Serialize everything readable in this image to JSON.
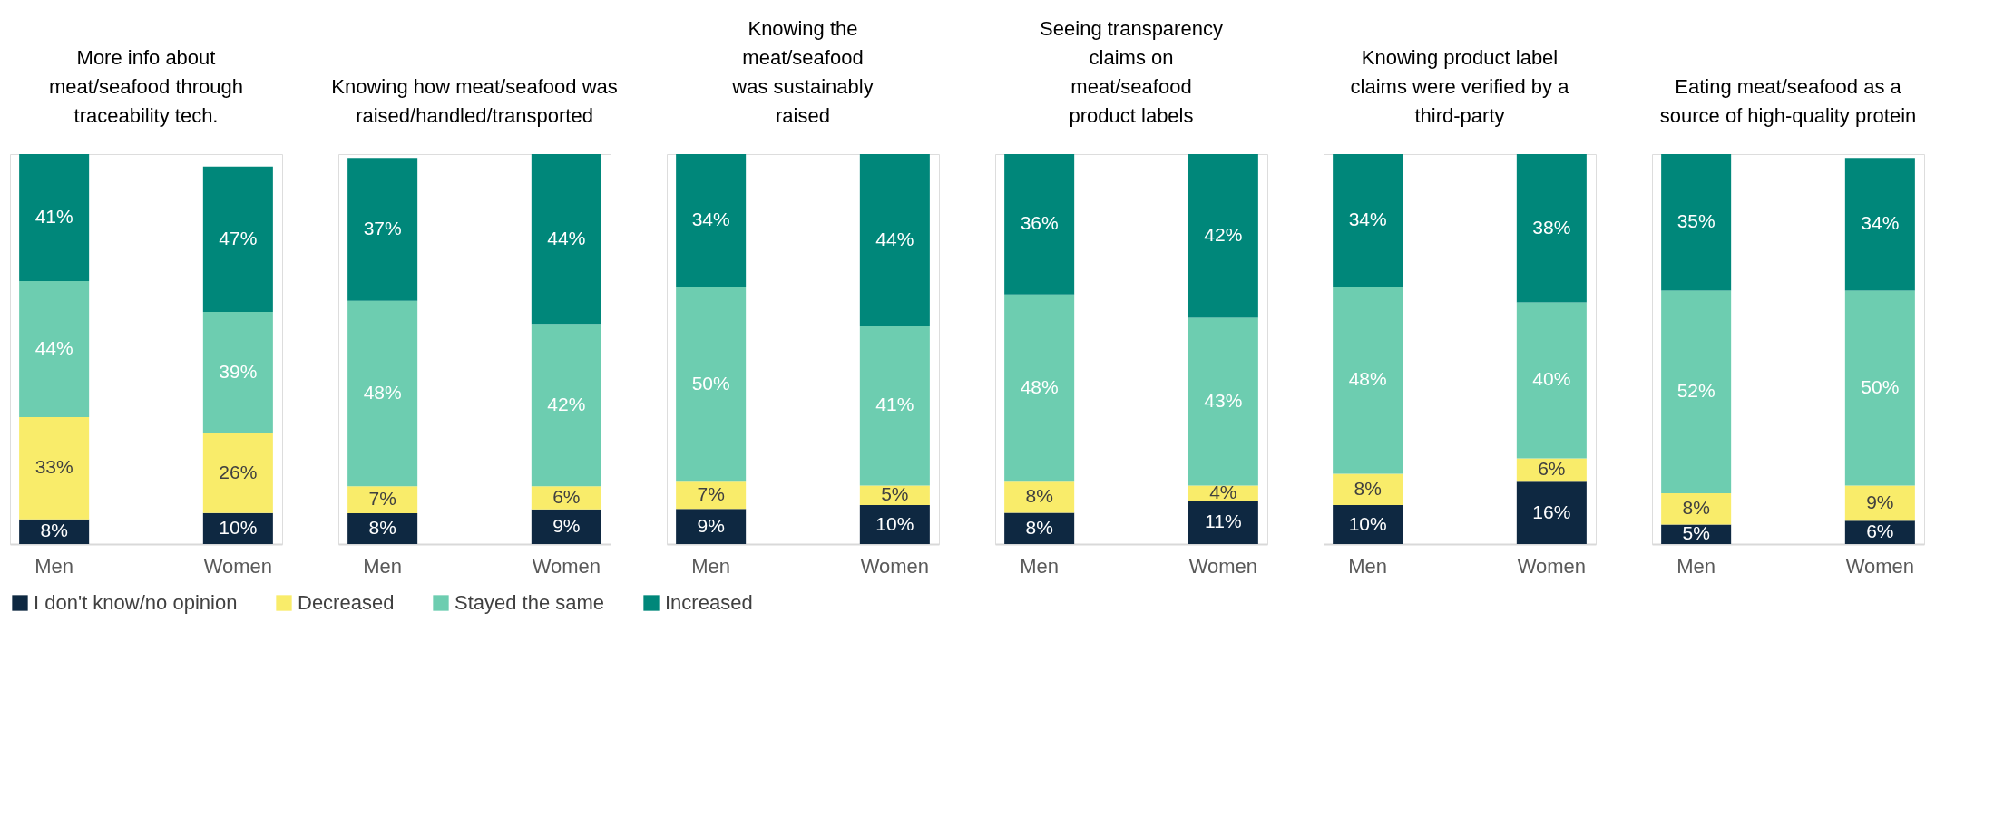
{
  "chart_data": [
    {
      "type": "bar",
      "stacked": true,
      "legend": "bottom",
      "title": "More info about\nmeat/seafood through\ntraceability tech.",
      "categories": [
        "Men",
        "Women"
      ],
      "series": [
        {
          "name": "I don't know/no opinion",
          "color": "#0e2841",
          "values": [
            8,
            10
          ],
          "value_labels": [
            "8%",
            "10%"
          ]
        },
        {
          "name": "Decreased",
          "color": "#f9ec6a",
          "values": [
            33,
            26
          ],
          "value_labels": [
            "33%",
            "26%"
          ]
        },
        {
          "name": "Stayed the same",
          "color": "#6dcdb0",
          "values": [
            44,
            39
          ],
          "value_labels": [
            "44%",
            "39%"
          ]
        },
        {
          "name": "Increased",
          "color": "#00877a",
          "values": [
            41,
            47
          ],
          "value_labels": [
            "41%",
            "47%"
          ]
        }
      ]
    },
    {
      "type": "bar",
      "stacked": true,
      "legend": "bottom",
      "title": "Knowing how meat/seafood was\nraised/handled/transported",
      "categories": [
        "Men",
        "Women"
      ],
      "series": [
        {
          "name": "I don't know/no opinion",
          "color": "#0e2841",
          "values": [
            8,
            9
          ],
          "value_labels": [
            "8%",
            "9%"
          ]
        },
        {
          "name": "Decreased",
          "color": "#f9ec6a",
          "values": [
            7,
            6
          ],
          "value_labels": [
            "7%",
            "6%"
          ]
        },
        {
          "name": "Stayed the same",
          "color": "#6dcdb0",
          "values": [
            48,
            42
          ],
          "value_labels": [
            "48%",
            "42%"
          ]
        },
        {
          "name": "Increased",
          "color": "#00877a",
          "values": [
            37,
            44
          ],
          "value_labels": [
            "37%",
            "44%"
          ]
        }
      ]
    },
    {
      "type": "bar",
      "stacked": true,
      "legend": "bottom",
      "title": "Knowing the\nmeat/seafood\nwas sustainably\nraised",
      "categories": [
        "Men",
        "Women"
      ],
      "series": [
        {
          "name": "I don't know/no opinion",
          "color": "#0e2841",
          "values": [
            9,
            10
          ],
          "value_labels": [
            "9%",
            "10%"
          ]
        },
        {
          "name": "Decreased",
          "color": "#f9ec6a",
          "values": [
            7,
            5
          ],
          "value_labels": [
            "7%",
            "5%"
          ]
        },
        {
          "name": "Stayed the same",
          "color": "#6dcdb0",
          "values": [
            50,
            41
          ],
          "value_labels": [
            "50%",
            "41%"
          ]
        },
        {
          "name": "Increased",
          "color": "#00877a",
          "values": [
            34,
            44
          ],
          "value_labels": [
            "34%",
            "44%"
          ]
        }
      ]
    },
    {
      "type": "bar",
      "stacked": true,
      "legend": "bottom",
      "title": "Seeing transparency\nclaims on\nmeat/seafood\nproduct labels",
      "categories": [
        "Men",
        "Women"
      ],
      "series": [
        {
          "name": "I don't know/no opinion",
          "color": "#0e2841",
          "values": [
            8,
            11
          ],
          "value_labels": [
            "8%",
            "11%"
          ]
        },
        {
          "name": "Decreased",
          "color": "#f9ec6a",
          "values": [
            8,
            4
          ],
          "value_labels": [
            "8%",
            "4%"
          ]
        },
        {
          "name": "Stayed the same",
          "color": "#6dcdb0",
          "values": [
            48,
            43
          ],
          "value_labels": [
            "48%",
            "43%"
          ]
        },
        {
          "name": "Increased",
          "color": "#00877a",
          "values": [
            36,
            42
          ],
          "value_labels": [
            "36%",
            "42%"
          ]
        }
      ]
    },
    {
      "type": "bar",
      "stacked": true,
      "legend": "bottom",
      "title": "Knowing product label\nclaims were verified by a\nthird-party",
      "categories": [
        "Men",
        "Women"
      ],
      "series": [
        {
          "name": "I don't know/no opinion",
          "color": "#0e2841",
          "values": [
            10,
            16
          ],
          "value_labels": [
            "10%",
            "16%"
          ]
        },
        {
          "name": "Decreased",
          "color": "#f9ec6a",
          "values": [
            8,
            6
          ],
          "value_labels": [
            "8%",
            "6%"
          ]
        },
        {
          "name": "Stayed the same",
          "color": "#6dcdb0",
          "values": [
            48,
            40
          ],
          "value_labels": [
            "48%",
            "40%"
          ]
        },
        {
          "name": "Increased",
          "color": "#00877a",
          "values": [
            34,
            38
          ],
          "value_labels": [
            "34%",
            "38%"
          ]
        }
      ]
    },
    {
      "type": "bar",
      "stacked": true,
      "legend": "bottom",
      "title": "Eating meat/seafood as a\nsource of high-quality protein",
      "categories": [
        "Men",
        "Women"
      ],
      "series": [
        {
          "name": "I don't know/no opinion",
          "color": "#0e2841",
          "values": [
            5,
            6
          ],
          "value_labels": [
            "5%",
            "6%"
          ]
        },
        {
          "name": "Decreased",
          "color": "#f9ec6a",
          "values": [
            8,
            9
          ],
          "value_labels": [
            "8%",
            "9%"
          ]
        },
        {
          "name": "Stayed the same",
          "color": "#6dcdb0",
          "values": [
            52,
            50
          ],
          "value_labels": [
            "52%",
            "50%"
          ]
        },
        {
          "name": "Increased",
          "color": "#00877a",
          "values": [
            35,
            34
          ],
          "value_labels": [
            "35%",
            "34%"
          ]
        }
      ]
    }
  ]
}
